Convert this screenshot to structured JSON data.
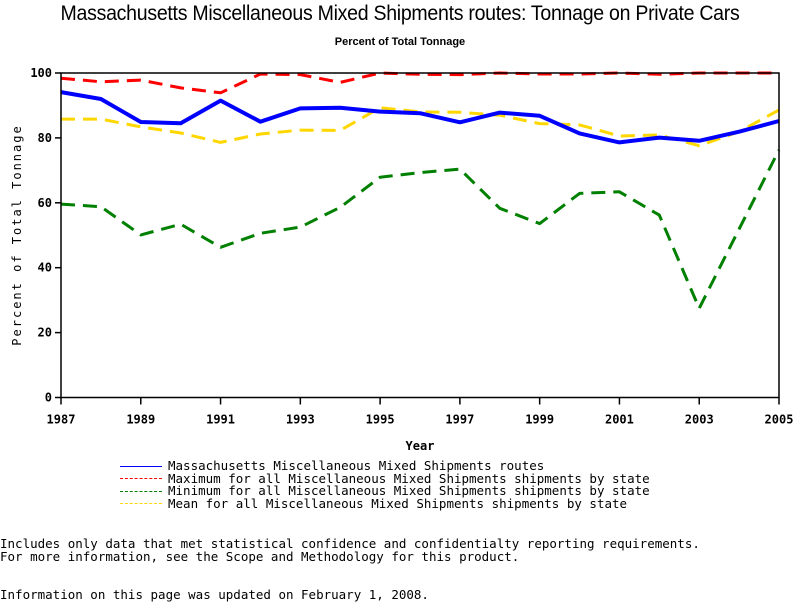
{
  "page": {
    "title": "Massachusetts Miscellaneous Mixed Shipments routes: Tonnage on Private Cars",
    "subtitle": "Percent of Total Tonnage",
    "footnote_1": "Includes only data that met statistical confidence and confidentialty reporting requirements.",
    "footnote_2": "For more information, see the Scope and Methodology for this product.",
    "updated": "Information on this page was updated on February 1, 2008."
  },
  "chart_data": {
    "type": "line",
    "title": "Massachusetts Miscellaneous Mixed Shipments routes: Tonnage on Private Cars",
    "subtitle": "Percent of Total Tonnage",
    "xlabel": "Year",
    "ylabel": "Percent of Total Tonnage",
    "xlim": [
      1987,
      2005
    ],
    "ylim": [
      0,
      100
    ],
    "x_ticks": [
      1987,
      1989,
      1991,
      1993,
      1995,
      1997,
      1999,
      2001,
      2003,
      2005
    ],
    "y_ticks": [
      0,
      20,
      40,
      60,
      80,
      100
    ],
    "grid": false,
    "legend_position": "bottom",
    "x": [
      1987,
      1988,
      1989,
      1990,
      1991,
      1992,
      1993,
      1994,
      1995,
      1996,
      1997,
      1998,
      1999,
      2000,
      2001,
      2002,
      2003,
      2004,
      2005
    ],
    "series": [
      {
        "name": "Massachusetts Miscellaneous Mixed Shipments routes",
        "color": "#0000ff",
        "style": "solid",
        "values": [
          94.1,
          92.0,
          84.9,
          84.5,
          91.5,
          85.0,
          89.1,
          89.3,
          88.1,
          87.6,
          84.8,
          87.8,
          86.8,
          81.4,
          78.6,
          80.1,
          79.1,
          81.9,
          85.2
        ]
      },
      {
        "name": "Maximum for all Miscellaneous Mixed Shipments shipments by state",
        "color": "#ff0000",
        "style": "dashed",
        "values": [
          98.4,
          97.3,
          97.8,
          95.4,
          93.9,
          99.7,
          99.5,
          97.1,
          100.0,
          99.6,
          99.5,
          100.0,
          99.7,
          99.7,
          100.0,
          99.6,
          100.0,
          100.0,
          100.0
        ]
      },
      {
        "name": "Minimum for all Miscellaneous Mixed Shipments shipments by state",
        "color": "#008000",
        "style": "dashed",
        "values": [
          59.6,
          58.8,
          50.1,
          53.4,
          46.3,
          50.6,
          52.5,
          58.6,
          67.9,
          69.3,
          70.4,
          58.3,
          53.6,
          62.9,
          63.4,
          56.2,
          27.5,
          51.9,
          76.3
        ]
      },
      {
        "name": "Mean for all Miscellaneous Mixed Shipments shipments by state",
        "color": "#ffd700",
        "style": "dashed",
        "values": [
          85.8,
          85.8,
          83.4,
          81.5,
          78.6,
          81.2,
          82.4,
          82.3,
          89.3,
          88.0,
          87.9,
          87.0,
          84.4,
          84.0,
          80.6,
          80.9,
          77.6,
          81.9,
          88.6
        ]
      }
    ]
  }
}
